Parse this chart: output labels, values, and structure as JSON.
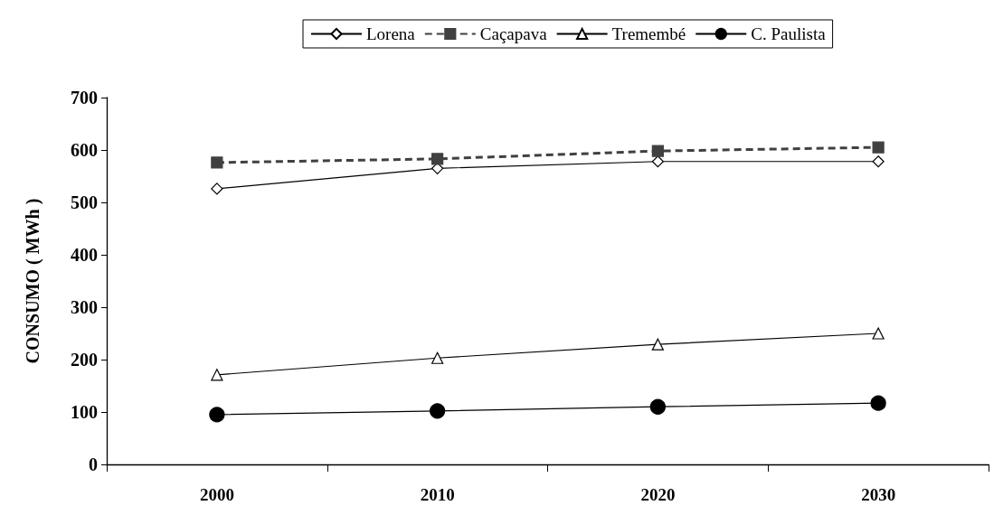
{
  "chart_data": {
    "type": "line",
    "ylabel": "CONSUMO ( MWh )",
    "categories": [
      "2000",
      "2010",
      "2020",
      "2030"
    ],
    "series": [
      {
        "name": "Lorena",
        "color": "#000000",
        "values": [
          526,
          565,
          578,
          578
        ],
        "marker": "diamond",
        "line_style": "solid"
      },
      {
        "name": "Caçapava",
        "color": "#404040",
        "values": [
          576,
          583,
          598,
          605
        ],
        "marker": "square",
        "line_style": "dashed"
      },
      {
        "name": "Tremembé",
        "color": "#000000",
        "values": [
          171,
          203,
          229,
          250
        ],
        "marker": "triangle",
        "line_style": "solid"
      },
      {
        "name": "C. Paulista",
        "color": "#000000",
        "values": [
          95,
          102,
          110,
          117
        ],
        "marker": "circle",
        "line_style": "solid"
      }
    ],
    "ylim": [
      0,
      700
    ],
    "yticks": [
      0,
      100,
      200,
      300,
      400,
      500,
      600,
      700
    ],
    "grid": false,
    "legend": "top"
  }
}
